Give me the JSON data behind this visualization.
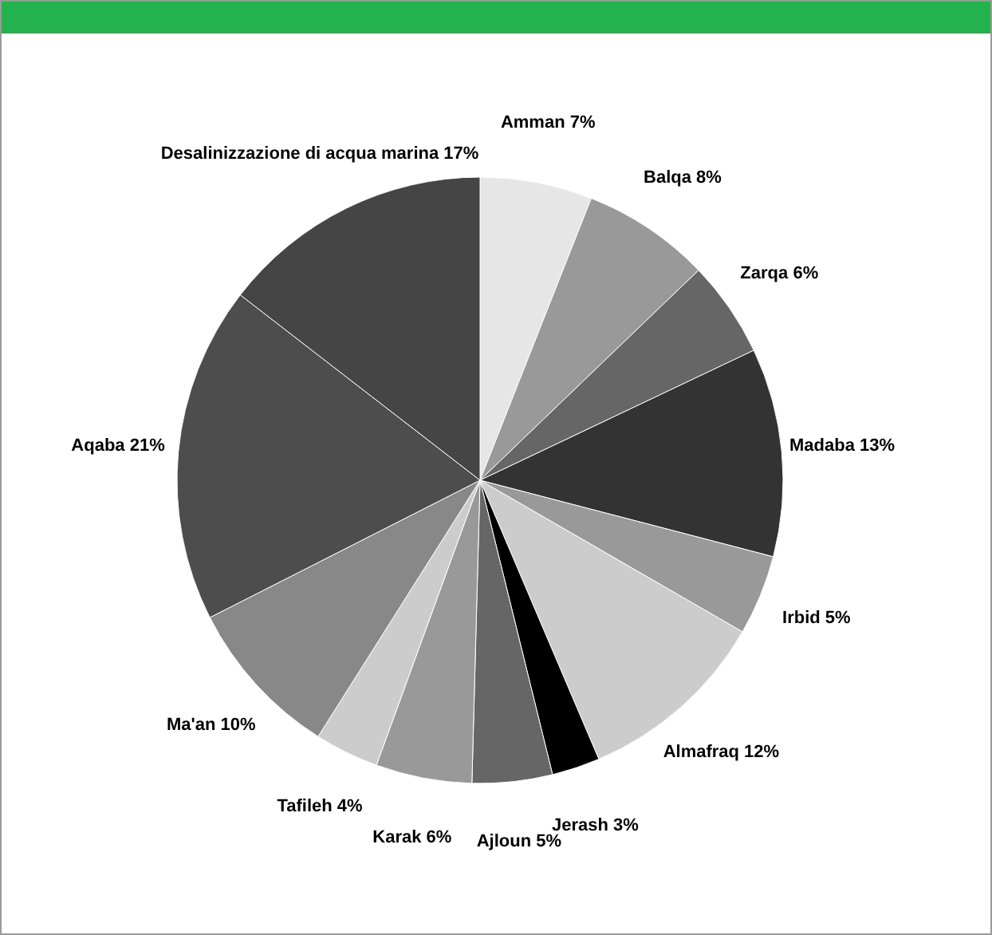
{
  "chart_data": {
    "type": "pie",
    "categories": [
      "Amman",
      "Balqa",
      "Zarqa",
      "Madaba",
      "Irbid",
      "Almafraq",
      "Jerash",
      "Ajloun",
      "Karak",
      "Tafileh",
      "Ma'an",
      "Aqaba",
      "Desalinizzazione di acqua marina"
    ],
    "values": [
      7,
      8,
      6,
      13,
      5,
      12,
      3,
      5,
      6,
      4,
      10,
      21,
      17
    ],
    "value_labels": [
      "7%",
      "8%",
      "6%",
      "13%",
      "5%",
      "12%",
      "3%",
      "5%",
      "6%",
      "4%",
      "10%",
      "21%",
      "17%"
    ],
    "colors": [
      "#e6e6e6",
      "#999999",
      "#666666",
      "#333333",
      "#999999",
      "#cccccc",
      "#000000",
      "#666666",
      "#999999",
      "#cccccc",
      "#888888",
      "#4d4d4d",
      "#454545"
    ]
  }
}
